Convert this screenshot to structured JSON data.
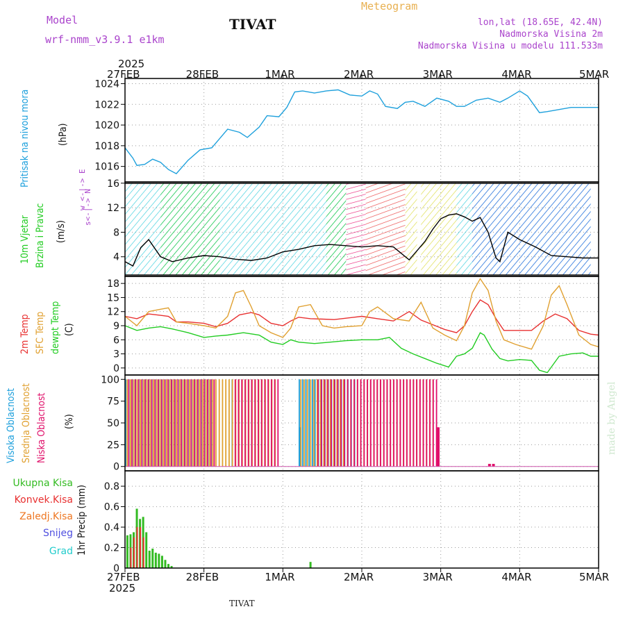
{
  "header": {
    "model_label": "Model",
    "model_name": "wrf-nmm_v3.9.1  e1km",
    "station": "TIVAT",
    "title": "Meteogram",
    "coords": "lon,lat (18.65E, 42.4N)",
    "altitude": "Nadmorska Visina 2m",
    "model_altitude": "Nadmorska Visina u modelu 111.533m",
    "footer_station": "TIVAT",
    "watermark": "made by Angel"
  },
  "colors": {
    "pressure": "#1ea0dc",
    "wind_label": "#22cc22",
    "temp2m": "#e83030",
    "sfc_temp": "#e0a030",
    "dewpt": "#22cc22",
    "high_cloud": "#1ea0dc",
    "mid_cloud": "#e0a030",
    "low_cloud": "#e0106a",
    "total_precip": "#33bb22",
    "conv_precip": "#e83030",
    "frz_precip": "#ee7722",
    "snow": "#5050e0",
    "hail": "#22cccc",
    "wind_label2": "#aa44cc"
  },
  "axes": {
    "top_year": "2025",
    "bottom_year": "2025",
    "days": [
      "27FEB",
      "28FEB",
      "1MAR",
      "2MAR",
      "3MAR",
      "4MAR",
      "5MAR"
    ]
  },
  "labels": {
    "pressure": [
      "Pritisak na nivou mora",
      "(hPa)"
    ],
    "wind": [
      "10m Vjetar",
      "Brzina i Pravac",
      "(m/s)"
    ],
    "wind_compass": [
      "w <-|-> E",
      "s<-|-> N"
    ],
    "temp": [
      "2m Temp",
      "SFC Temp",
      "dewpt Temp",
      "(C)"
    ],
    "cloud": [
      "Visoka Oblacnost",
      "Srednja Oblacnost",
      "Niska Oblacnost",
      "(%)"
    ],
    "precip_legend": [
      "Ukupna Kisa",
      "Konvek.Kisa",
      "Zaledj.Kisa",
      "Snijeg",
      "Grad"
    ],
    "precip_unit": "1hr Precip (mm)"
  },
  "chart_data": [
    {
      "type": "line",
      "panel": "pressure",
      "ylabel": "(hPa)",
      "ylim": [
        1014.5,
        1024.5
      ],
      "yticks": [
        1016,
        1018,
        1020,
        1022,
        1024
      ],
      "x_unit": "days since 27FEB 00UTC",
      "series": [
        {
          "name": "Pritisak na nivou mora",
          "x": [
            0,
            0.1,
            0.15,
            0.25,
            0.35,
            0.45,
            0.55,
            0.65,
            0.8,
            0.95,
            1.1,
            1.2,
            1.3,
            1.45,
            1.55,
            1.7,
            1.8,
            1.95,
            2.05,
            2.15,
            2.25,
            2.4,
            2.55,
            2.7,
            2.85,
            3.0,
            3.1,
            3.2,
            3.3,
            3.45,
            3.55,
            3.65,
            3.8,
            3.95,
            4.1,
            4.2,
            4.3,
            4.45,
            4.6,
            4.75,
            4.85,
            5.0,
            5.1,
            5.25,
            5.35,
            5.5,
            5.65,
            5.8,
            6.0
          ],
          "y": [
            1017.8,
            1016.8,
            1016.1,
            1016.2,
            1016.7,
            1016.4,
            1015.7,
            1015.3,
            1016.6,
            1017.6,
            1017.8,
            1018.7,
            1019.6,
            1019.3,
            1018.8,
            1019.8,
            1020.9,
            1020.8,
            1021.7,
            1023.2,
            1023.3,
            1023.1,
            1023.3,
            1023.4,
            1022.9,
            1022.8,
            1023.3,
            1023.0,
            1021.8,
            1021.6,
            1022.2,
            1022.3,
            1021.8,
            1022.6,
            1022.3,
            1021.8,
            1021.8,
            1022.4,
            1022.6,
            1022.2,
            1022.6,
            1023.3,
            1022.8,
            1021.2,
            1021.3,
            1021.5,
            1021.7,
            1021.7,
            1021.7
          ]
        }
      ]
    },
    {
      "type": "line",
      "panel": "wind",
      "ylabel": "(m/s)",
      "ylim": [
        0.8,
        16.2
      ],
      "yticks": [
        4,
        8,
        12,
        16
      ],
      "series": [
        {
          "name": "10m Vjetar",
          "x": [
            0,
            0.1,
            0.2,
            0.3,
            0.45,
            0.6,
            0.8,
            1.0,
            1.2,
            1.4,
            1.6,
            1.8,
            2.0,
            2.2,
            2.4,
            2.6,
            2.8,
            3.0,
            3.2,
            3.4,
            3.6,
            3.8,
            3.9,
            4.0,
            4.1,
            4.2,
            4.3,
            4.4,
            4.5,
            4.6,
            4.7,
            4.75,
            4.85,
            5.0,
            5.2,
            5.4,
            5.6,
            5.8,
            6.0
          ],
          "y": [
            3.2,
            2.5,
            5.5,
            6.8,
            4.0,
            3.2,
            3.8,
            4.2,
            4.0,
            3.6,
            3.4,
            3.8,
            4.8,
            5.2,
            5.8,
            6.0,
            5.8,
            5.6,
            5.8,
            5.6,
            3.5,
            6.5,
            8.5,
            10.2,
            10.8,
            11.0,
            10.5,
            9.8,
            10.4,
            8.0,
            3.8,
            3.2,
            8.0,
            6.8,
            5.6,
            4.2,
            4.0,
            3.8,
            3.8
          ]
        }
      ]
    },
    {
      "type": "line",
      "panel": "temperature",
      "ylabel": "(C)",
      "ylim": [
        -1.5,
        19.5
      ],
      "yticks": [
        0,
        3,
        6,
        9,
        12,
        15,
        18
      ],
      "series": [
        {
          "name": "2m Temp",
          "x": [
            0,
            0.15,
            0.3,
            0.45,
            0.55,
            0.65,
            0.8,
            1.0,
            1.15,
            1.3,
            1.45,
            1.6,
            1.7,
            1.85,
            2.0,
            2.1,
            2.2,
            2.35,
            2.5,
            2.65,
            2.8,
            3.0,
            3.2,
            3.4,
            3.6,
            3.75,
            3.9,
            4.05,
            4.2,
            4.3,
            4.4,
            4.5,
            4.6,
            4.7,
            4.8,
            4.95,
            5.15,
            5.3,
            5.45,
            5.6,
            5.75,
            5.9,
            6.0
          ],
          "y": [
            11,
            10.5,
            11.5,
            11.2,
            11.0,
            9.8,
            9.8,
            9.5,
            8.8,
            9.5,
            11.3,
            11.8,
            11.3,
            9.5,
            9.0,
            10.0,
            10.8,
            10.5,
            10.4,
            10.3,
            10.6,
            11.0,
            10.5,
            10.0,
            12.0,
            10.2,
            9.2,
            8.2,
            7.5,
            9.0,
            12.0,
            14.5,
            13.5,
            10.5,
            8.0,
            8.0,
            8.0,
            10.0,
            11.5,
            10.5,
            8.0,
            7.2,
            7.0
          ]
        },
        {
          "name": "SFC Temp",
          "x": [
            0,
            0.15,
            0.3,
            0.45,
            0.55,
            0.65,
            0.8,
            1.0,
            1.15,
            1.3,
            1.4,
            1.5,
            1.6,
            1.7,
            1.85,
            2.0,
            2.1,
            2.2,
            2.35,
            2.5,
            2.65,
            2.8,
            3.0,
            3.1,
            3.2,
            3.4,
            3.6,
            3.75,
            3.9,
            4.05,
            4.2,
            4.3,
            4.4,
            4.5,
            4.6,
            4.7,
            4.8,
            4.95,
            5.15,
            5.3,
            5.4,
            5.5,
            5.6,
            5.75,
            5.9,
            6.0
          ],
          "y": [
            11,
            9.0,
            12.0,
            12.5,
            12.8,
            9.8,
            9.5,
            9.0,
            8.5,
            11.0,
            16.0,
            16.5,
            13.0,
            9.0,
            7.5,
            6.5,
            8.5,
            13.0,
            13.5,
            9.0,
            8.5,
            8.8,
            9.0,
            12.0,
            13.0,
            10.5,
            10.0,
            14.0,
            8.5,
            7.0,
            5.8,
            9.0,
            16.0,
            19.0,
            16.5,
            10.0,
            6.0,
            5.0,
            4.0,
            9.0,
            15.5,
            17.5,
            13.5,
            7.0,
            5.0,
            4.5
          ]
        },
        {
          "name": "dewpt Temp",
          "x": [
            0,
            0.15,
            0.3,
            0.45,
            0.6,
            0.8,
            1.0,
            1.15,
            1.3,
            1.5,
            1.7,
            1.85,
            2.0,
            2.1,
            2.2,
            2.4,
            2.6,
            2.8,
            3.0,
            3.2,
            3.35,
            3.5,
            3.65,
            3.8,
            3.95,
            4.1,
            4.2,
            4.3,
            4.4,
            4.5,
            4.55,
            4.65,
            4.75,
            4.85,
            5.0,
            5.15,
            5.25,
            5.35,
            5.5,
            5.65,
            5.8,
            5.9,
            6.0
          ],
          "y": [
            9.0,
            8.0,
            8.5,
            8.8,
            8.3,
            7.5,
            6.5,
            6.8,
            7.0,
            7.5,
            7.0,
            5.5,
            5.0,
            6.0,
            5.5,
            5.2,
            5.5,
            5.8,
            6.0,
            6.0,
            6.5,
            4.2,
            3.0,
            2.0,
            1.0,
            0.2,
            2.5,
            3.0,
            4.2,
            7.5,
            7.0,
            4.0,
            2.0,
            1.5,
            1.8,
            1.6,
            -0.5,
            -1.0,
            2.5,
            3.0,
            3.2,
            2.5,
            2.5
          ]
        }
      ]
    },
    {
      "type": "bar",
      "panel": "cloud",
      "ylabel": "(%)",
      "ylim": [
        -5,
        105
      ],
      "yticks": [
        0,
        25,
        50,
        75,
        100
      ],
      "series": [
        {
          "name": "Visoka Oblacnost",
          "segments": [
            [
              0.0,
              1.1,
              100
            ],
            [
              1.1,
              1.35,
              0
            ],
            [
              1.35,
              1.9,
              100
            ],
            [
              2.2,
              2.4,
              100
            ],
            [
              2.4,
              2.9,
              100
            ]
          ],
          "extra": [
            [
              2.2,
              45
            ]
          ]
        },
        {
          "name": "Srednja Oblacnost",
          "segments": [
            [
              0.0,
              1.9,
              100
            ],
            [
              2.2,
              2.75,
              100
            ],
            [
              2.75,
              3.9,
              100
            ]
          ]
        },
        {
          "name": "Niska Oblacnost",
          "segments": [
            [
              0.0,
              1.1,
              100
            ],
            [
              1.35,
              1.9,
              100
            ],
            [
              2.4,
              3.9,
              100
            ]
          ],
          "extra": [
            [
              4.6,
              3
            ],
            [
              4.65,
              3
            ],
            [
              3.95,
              45
            ]
          ]
        }
      ]
    },
    {
      "type": "bar",
      "panel": "precip",
      "ylabel": "1hr Precip (mm)",
      "ylim": [
        0,
        0.95
      ],
      "yticks": [
        0.2,
        0.4,
        0.6,
        0.8
      ],
      "series": [
        {
          "name": "Ukupna Kisa",
          "x": [
            0.03,
            0.07,
            0.11,
            0.15,
            0.19,
            0.23,
            0.27,
            0.31,
            0.35,
            0.39,
            0.43,
            0.47,
            0.51,
            0.55,
            0.59,
            2.35
          ],
          "values": [
            0.32,
            0.33,
            0.35,
            0.58,
            0.48,
            0.5,
            0.35,
            0.17,
            0.19,
            0.15,
            0.14,
            0.12,
            0.08,
            0.04,
            0.02,
            0.06
          ]
        },
        {
          "name": "Konvek.Kisa",
          "x": [
            0.07,
            0.11,
            0.15,
            0.19,
            0.23
          ],
          "values": [
            0.2,
            0.3,
            0.4,
            0.4,
            0.3
          ]
        }
      ]
    }
  ]
}
